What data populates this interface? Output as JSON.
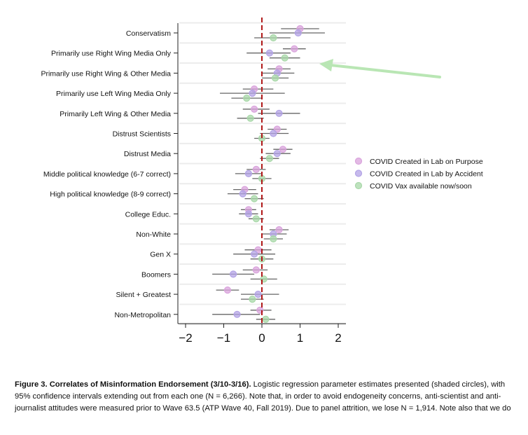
{
  "chart_data": {
    "type": "scatter",
    "subtype": "coefficient-plot-with-confidence-intervals",
    "x_ticks": [
      -2,
      -1,
      0,
      1,
      2
    ],
    "xlim": [
      -2.2,
      2.2
    ],
    "reference_line_x": 0,
    "grid": "horizontal row separators",
    "legend_position": "right",
    "categories": [
      "Conservatism",
      "Primarily use Right Wing Media Only",
      "Primarily use Right Wing & Other Media",
      "Primarily use Left Wing Media Only",
      "Primarily Left Wing & Other Media",
      "Distrust Scientists",
      "Distrust Media",
      "Middle political knowledge (6-7 correct)",
      "High political knowledge (8-9 correct)",
      "College Educ.",
      "Non-White",
      "Gen X",
      "Boomers",
      "Silent + Greatest",
      "Non-Metropolitan"
    ],
    "series": [
      {
        "name": "COVID Created in Lab on Purpose",
        "color": "#d9a3dc",
        "estimates": [
          1.0,
          0.85,
          0.45,
          -0.2,
          -0.2,
          0.4,
          0.55,
          -0.15,
          -0.45,
          -0.35,
          0.45,
          -0.1,
          -0.15,
          -0.9,
          -0.05
        ],
        "ci_low": [
          0.5,
          0.55,
          0.15,
          -0.5,
          -0.5,
          0.15,
          0.3,
          -0.4,
          -0.75,
          -0.55,
          0.2,
          -0.45,
          -0.5,
          -1.2,
          -0.3
        ],
        "ci_high": [
          1.5,
          1.15,
          0.75,
          0.3,
          0.2,
          0.65,
          0.8,
          0.1,
          -0.15,
          -0.15,
          0.7,
          0.25,
          0.15,
          -0.6,
          0.25
        ]
      },
      {
        "name": "COVID Created in Lab by Accident",
        "color": "#b3a3e6",
        "estimates": [
          0.95,
          0.2,
          0.4,
          -0.25,
          0.45,
          0.3,
          0.4,
          -0.35,
          -0.5,
          -0.35,
          0.3,
          -0.2,
          -0.75,
          -0.1,
          -0.65
        ],
        "ci_low": [
          0.2,
          -0.4,
          0.0,
          -1.1,
          -0.1,
          -0.05,
          0.1,
          -0.7,
          -0.9,
          -0.6,
          0.0,
          -0.75,
          -1.3,
          -0.55,
          -1.3
        ],
        "ci_high": [
          1.65,
          0.75,
          0.85,
          0.6,
          1.0,
          0.7,
          0.75,
          0.0,
          -0.1,
          -0.1,
          0.65,
          0.35,
          -0.2,
          0.45,
          -0.05
        ]
      },
      {
        "name": "COVID Vax available now/soon",
        "color": "#a8d8a8",
        "estimates": [
          0.3,
          0.6,
          0.35,
          -0.4,
          -0.3,
          0.0,
          0.2,
          0.0,
          -0.2,
          -0.15,
          0.3,
          0.0,
          0.05,
          -0.25,
          0.1
        ],
        "ci_low": [
          -0.2,
          0.2,
          0.0,
          -0.8,
          -0.65,
          -0.2,
          -0.05,
          -0.25,
          -0.45,
          -0.35,
          0.05,
          -0.3,
          -0.3,
          -0.55,
          -0.15
        ],
        "ci_high": [
          0.75,
          1.0,
          0.7,
          0.0,
          0.05,
          0.2,
          0.45,
          0.25,
          0.05,
          0.05,
          0.55,
          0.3,
          0.4,
          0.05,
          0.35
        ]
      }
    ]
  },
  "annotation": {
    "arrow_color": "#b9e6b4"
  },
  "caption": {
    "title": "Figure 3. Correlates of Misinformation Endorsement (3/10-3/16).",
    "text": " Logistic regression parameter estimates presented (shaded circles), with 95% confidence intervals extending out from each one (N = 6,266). Note that, in order to avoid endogeneity concerns, anti-scientist and anti-journalist attitudes were measured prior to Wave 63.5 (ATP Wave 40, Fall 2019). Due to panel attrition, we lose N = 1,914. Note also that we do"
  }
}
